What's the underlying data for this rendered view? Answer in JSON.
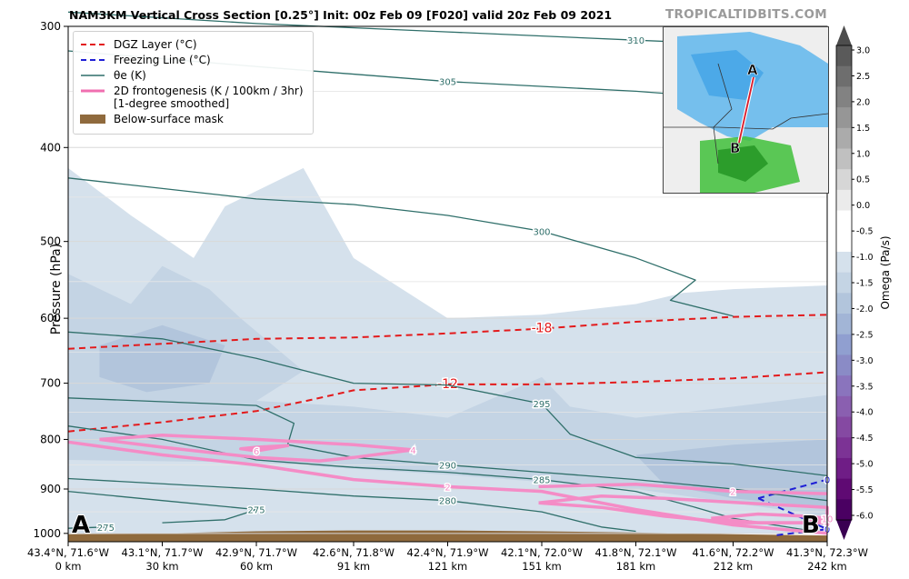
{
  "header": {
    "title": "NAM3KM Vertical Cross Section [0.25°] Init: 00z Feb 09 [F020] valid 20z Feb 09 2021",
    "brand": "TROPICALTIDBITS.COM"
  },
  "legend": {
    "items": [
      {
        "label": "DGZ Layer (°C)",
        "style": "dashed",
        "color": "#e31a1c"
      },
      {
        "label": "Freezing Line (°C)",
        "style": "dashed",
        "color": "#1f1fd6"
      },
      {
        "label": "θe (K)",
        "style": "solid",
        "color": "#2f6f6a"
      },
      {
        "label": "2D frontogenesis (K / 100km / 3hr)",
        "label2": "[1-degree smoothed]",
        "style": "thick",
        "color": "#f06fb0"
      },
      {
        "label": "Below-surface mask",
        "style": "patch",
        "color": "#8f6a3d"
      }
    ]
  },
  "map_inset": {
    "point_a": "A",
    "point_b": "B"
  },
  "endpoints": {
    "left": "A",
    "right": "B"
  },
  "chart_data": {
    "type": "line",
    "title": "NAM3KM Vertical Cross Section [0.25°] Init: 00z Feb 09 [F020] valid 20z Feb 09 2021",
    "ylabel": "Pressure (hPa)",
    "y_scale": "log",
    "ylim": [
      1020,
      300
    ],
    "y_ticks": [
      300,
      400,
      500,
      600,
      700,
      800,
      900,
      1000
    ],
    "xlim": [
      0,
      242
    ],
    "x_ticks": [
      {
        "km": 0,
        "top": "43.4°N, 71.6°W",
        "bottom": "0 km"
      },
      {
        "km": 30,
        "top": "43.1°N, 71.7°W",
        "bottom": "30 km"
      },
      {
        "km": 60,
        "top": "42.9°N, 71.7°W",
        "bottom": "60 km"
      },
      {
        "km": 91,
        "top": "42.6°N, 71.8°W",
        "bottom": "91 km"
      },
      {
        "km": 121,
        "top": "42.4°N, 71.9°W",
        "bottom": "121 km"
      },
      {
        "km": 151,
        "top": "42.1°N, 72.0°W",
        "bottom": "151 km"
      },
      {
        "km": 181,
        "top": "41.8°N, 72.1°W",
        "bottom": "181 km"
      },
      {
        "km": 212,
        "top": "41.6°N, 72.2°W",
        "bottom": "212 km"
      },
      {
        "km": 242,
        "top": "41.3°N, 72.3°W",
        "bottom": "242 km"
      }
    ],
    "colorbar": {
      "label": "Omega (Pa/s)",
      "ticks": [
        "3.0",
        "2.5",
        "2.0",
        "1.5",
        "1.0",
        "0.5",
        "0.0",
        "-0.5",
        "-1.0",
        "-1.5",
        "-2.0",
        "-2.5",
        "-3.0",
        "-3.5",
        "-4.0",
        "-4.5",
        "-5.0",
        "-5.5",
        "-6.0"
      ],
      "colors_top_to_bottom": [
        "#5a5a5a",
        "#6e6e6e",
        "#828282",
        "#969696",
        "#ababab",
        "#c0c0c0",
        "#d6d6d6",
        "#ebebeb",
        "#ffffff",
        "#ffffff",
        "#d5e1ec",
        "#c4d4e4",
        "#b2c5dc",
        "#a2b5d6",
        "#909fd0",
        "#8a8bc6",
        "#8a74bd",
        "#8a5fb0",
        "#8549a2",
        "#7c3395",
        "#6f1d86",
        "#5f0a73",
        "#4a0062"
      ]
    },
    "series": [
      {
        "name": "DGZ Layer (°C)",
        "label": "-18",
        "points": [
          [
            0,
            645
          ],
          [
            60,
            630
          ],
          [
            91,
            628
          ],
          [
            121,
            622
          ],
          [
            151,
            615
          ],
          [
            181,
            605
          ],
          [
            212,
            598
          ],
          [
            242,
            595
          ]
        ]
      },
      {
        "name": "DGZ Layer (°C)",
        "label": "-12",
        "points": [
          [
            0,
            785
          ],
          [
            30,
            768
          ],
          [
            60,
            748
          ],
          [
            76,
            730
          ],
          [
            91,
            712
          ],
          [
            121,
            702
          ],
          [
            151,
            702
          ],
          [
            181,
            698
          ],
          [
            212,
            692
          ],
          [
            242,
            682
          ]
        ]
      },
      {
        "name": "Freezing Line (°C)",
        "label": "0",
        "points": [
          [
            220,
            920
          ],
          [
            242,
            880
          ]
        ]
      },
      {
        "name": "Freezing Line (°C)",
        "label": "0",
        "points": [
          [
            220,
            920
          ],
          [
            242,
            990
          ],
          [
            225,
            1005
          ]
        ]
      },
      {
        "name": "θe (K)",
        "label": "310",
        "points": [
          [
            0,
            290
          ],
          [
            60,
            298
          ],
          [
            121,
            304
          ],
          [
            181,
            310
          ],
          [
            212,
            313
          ],
          [
            242,
            316
          ]
        ]
      },
      {
        "name": "θe (K)",
        "label": "305",
        "points": [
          [
            0,
            318
          ],
          [
            60,
            330
          ],
          [
            121,
            342
          ],
          [
            181,
            350
          ],
          [
            242,
            362
          ]
        ]
      },
      {
        "name": "θe (K)",
        "label": "300",
        "points": [
          [
            0,
            430
          ],
          [
            60,
            452
          ],
          [
            91,
            458
          ],
          [
            121,
            470
          ],
          [
            151,
            488
          ],
          [
            181,
            520
          ],
          [
            200,
            548
          ],
          [
            192,
            575
          ],
          [
            212,
            597
          ]
        ]
      },
      {
        "name": "θe (K)",
        "label": "295",
        "points": [
          [
            0,
            620
          ],
          [
            30,
            630
          ],
          [
            60,
            660
          ],
          [
            91,
            700
          ],
          [
            121,
            703
          ],
          [
            151,
            735
          ],
          [
            160,
            790
          ],
          [
            181,
            835
          ],
          [
            212,
            848
          ],
          [
            242,
            872
          ]
        ]
      },
      {
        "name": "θe (K)",
        "label": "290",
        "points": [
          [
            0,
            725
          ],
          [
            60,
            738
          ],
          [
            72,
            770
          ],
          [
            70,
            810
          ],
          [
            91,
            835
          ],
          [
            121,
            850
          ],
          [
            151,
            865
          ],
          [
            181,
            880
          ],
          [
            212,
            900
          ],
          [
            242,
            925
          ]
        ]
      },
      {
        "name": "θe (K)",
        "label": "285",
        "points": [
          [
            0,
            775
          ],
          [
            30,
            800
          ],
          [
            60,
            840
          ],
          [
            91,
            855
          ],
          [
            121,
            865
          ],
          [
            151,
            880
          ],
          [
            181,
            905
          ],
          [
            200,
            940
          ],
          [
            212,
            965
          ],
          [
            242,
            1000
          ]
        ]
      },
      {
        "name": "θe (K)",
        "label": "280",
        "points": [
          [
            0,
            878
          ],
          [
            60,
            900
          ],
          [
            91,
            915
          ],
          [
            121,
            925
          ],
          [
            151,
            950
          ],
          [
            170,
            985
          ],
          [
            181,
            995
          ]
        ]
      },
      {
        "name": "θe (K)",
        "label": "275",
        "points": [
          [
            0,
            905
          ],
          [
            30,
            925
          ],
          [
            60,
            945
          ],
          [
            50,
            968
          ],
          [
            30,
            975
          ]
        ]
      },
      {
        "name": "θe (K)",
        "label": "275",
        "points": [
          [
            0,
            988
          ],
          [
            12,
            985
          ]
        ]
      },
      {
        "name": "2D frontogenesis (K / 100km / 3hr)",
        "label": "2",
        "points": [
          [
            0,
            805
          ],
          [
            30,
            830
          ],
          [
            60,
            850
          ],
          [
            91,
            880
          ],
          [
            121,
            895
          ],
          [
            151,
            905
          ],
          [
            181,
            945
          ],
          [
            212,
            980
          ],
          [
            242,
            1000
          ]
        ]
      },
      {
        "name": "2D frontogenesis (K / 100km / 3hr)",
        "label": "4",
        "points": [
          [
            10,
            800
          ],
          [
            30,
            815
          ],
          [
            60,
            835
          ],
          [
            80,
            842
          ],
          [
            91,
            835
          ],
          [
            110,
            820
          ],
          [
            91,
            810
          ],
          [
            60,
            800
          ],
          [
            30,
            792
          ],
          [
            10,
            800
          ]
        ]
      },
      {
        "name": "2D frontogenesis (K / 100km / 3hr)",
        "label": "6",
        "points": [
          [
            60,
            815
          ],
          [
            70,
            812
          ],
          [
            60,
            822
          ],
          [
            55,
            818
          ],
          [
            60,
            815
          ]
        ]
      },
      {
        "name": "2D frontogenesis (K / 100km / 3hr)",
        "label": "4",
        "points": [
          [
            150,
            930
          ],
          [
            170,
            915
          ],
          [
            190,
            920
          ],
          [
            215,
            930
          ],
          [
            242,
            940
          ],
          [
            242,
            975
          ],
          [
            212,
            975
          ],
          [
            190,
            960
          ],
          [
            170,
            940
          ],
          [
            150,
            930
          ]
        ]
      },
      {
        "name": "2D frontogenesis (K / 100km / 3hr)",
        "label": "2",
        "points": [
          [
            150,
            895
          ],
          [
            181,
            890
          ],
          [
            212,
            905
          ],
          [
            242,
            910
          ]
        ]
      },
      {
        "name": "2D frontogenesis (K / 100km / 3hr)",
        "label": "10",
        "points": [
          [
            205,
            965
          ],
          [
            220,
            955
          ],
          [
            235,
            960
          ],
          [
            242,
            965
          ],
          [
            235,
            975
          ],
          [
            220,
            975
          ],
          [
            205,
            965
          ]
        ]
      }
    ]
  }
}
